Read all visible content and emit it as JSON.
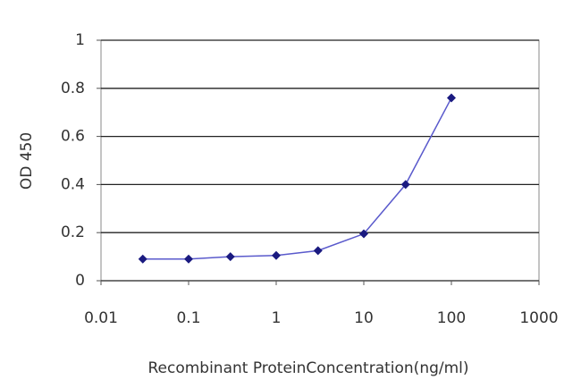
{
  "chart_data": {
    "type": "line",
    "x_label": "Recombinant ProteinConcentration(ng/ml)",
    "y_label": "OD 450",
    "x": [
      0.03,
      0.1,
      0.3,
      1,
      3,
      10,
      30,
      100
    ],
    "series": [
      {
        "color": "#1a1a80",
        "values": [
          0.09,
          0.09,
          0.1,
          0.105,
          0.125,
          0.195,
          0.4,
          0.76
        ]
      }
    ],
    "xscale": "log",
    "xlim": [
      0.01,
      1000
    ],
    "xticks": [
      0.01,
      0.1,
      1,
      10,
      100,
      1000
    ],
    "ylim": [
      0,
      1
    ],
    "yticks": [
      0,
      0.2,
      0.4,
      0.6,
      0.8,
      1
    ],
    "grid": true
  }
}
